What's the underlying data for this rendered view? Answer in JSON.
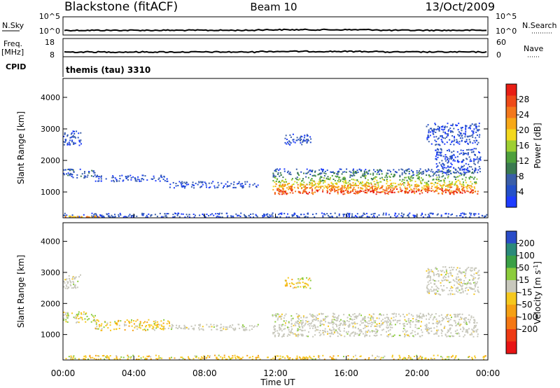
{
  "header": {
    "station": "Blackstone (fitACF)",
    "beam": "Beam 10",
    "date": "13/Oct/2009"
  },
  "param_panels": {
    "nsky": {
      "left_label": "N.Sky",
      "right_label": "N.Search",
      "left_ticks": [
        "10^5",
        "10^0"
      ],
      "right_ticks": [
        "10^5",
        "10^0"
      ]
    },
    "freq": {
      "left_label_1": "Freq.",
      "left_label_2": "[MHz]",
      "right_label": "Nave",
      "left_ticks": [
        "18",
        "8"
      ],
      "right_ticks": [
        "60",
        "0"
      ]
    },
    "cpid": {
      "label": "CPID",
      "text": "themis (tau) 3310"
    }
  },
  "chart_data": [
    {
      "type": "heatmap",
      "name": "power",
      "xlabel": "",
      "ylabel": "Slant Range [km]",
      "x_range_hours": [
        0,
        24
      ],
      "y_range_km": [
        180,
        4600
      ],
      "y_ticks": [
        1000,
        2000,
        3000,
        4000
      ],
      "colorbar": {
        "label": "Power [dB]",
        "range": [
          0,
          32
        ],
        "ticks": [
          "4",
          "8",
          "12",
          "16",
          "20",
          "24",
          "28"
        ],
        "colors": [
          "#1e3cff",
          "#2450c8",
          "#3a5ea8",
          "#3a7a50",
          "#4ea03c",
          "#9ecf32",
          "#f2d81e",
          "#f7a818",
          "#f3781c",
          "#ee4a18",
          "#e81e14"
        ]
      },
      "scatter_bands": [
        {
          "t_start": 0.0,
          "t_end": 1.0,
          "r_min": 2500,
          "r_max": 2950,
          "level": 1
        },
        {
          "t_start": 0.0,
          "t_end": 1.8,
          "r_min": 1450,
          "r_max": 1750,
          "level": 1.5
        },
        {
          "t_start": 1.8,
          "t_end": 6.0,
          "r_min": 1350,
          "r_max": 1550,
          "level": 1
        },
        {
          "t_start": 6.0,
          "t_end": 11.0,
          "r_min": 1150,
          "r_max": 1350,
          "level": 1
        },
        {
          "t_start": 0.0,
          "t_end": 24.0,
          "r_min": 200,
          "r_max": 350,
          "level": 1
        },
        {
          "t_start": 0.0,
          "t_end": 2.0,
          "r_min": 180,
          "r_max": 260,
          "level": 9
        },
        {
          "t_start": 11.8,
          "t_end": 23.4,
          "r_min": 950,
          "r_max": 1750,
          "level": 5
        },
        {
          "t_start": 12.0,
          "t_end": 23.2,
          "r_min": 1000,
          "r_max": 1300,
          "level": 9
        },
        {
          "t_start": 12.5,
          "t_end": 14.0,
          "r_min": 2500,
          "r_max": 2850,
          "level": 1
        },
        {
          "t_start": 20.5,
          "t_end": 23.5,
          "r_min": 2500,
          "r_max": 3200,
          "level": 1
        },
        {
          "t_start": 21.0,
          "t_end": 23.6,
          "r_min": 1600,
          "r_max": 2400,
          "level": 1
        }
      ]
    },
    {
      "type": "heatmap",
      "name": "velocity",
      "xlabel": "Time UT",
      "ylabel": "Slant Range [km]",
      "x_range_hours": [
        0,
        24
      ],
      "x_ticks": [
        "00:00",
        "04:00",
        "08:00",
        "12:00",
        "16:00",
        "20:00",
        "00:00"
      ],
      "y_range_km": [
        180,
        4600
      ],
      "y_ticks": [
        1000,
        2000,
        3000,
        4000
      ],
      "colorbar": {
        "label": "Velocity [m s^-1]",
        "ticks": [
          "200",
          "100",
          "50",
          "15",
          "-15",
          "-50",
          "-100",
          "-200"
        ],
        "colors": [
          "#2a4cc8",
          "#2a8a7a",
          "#3aa046",
          "#8ccc3c",
          "#c8c8bc",
          "#f5c81e",
          "#f5a014",
          "#f57814",
          "#ee3a14",
          "#e81414"
        ]
      },
      "scatter_bands": [
        {
          "t_start": 0.0,
          "t_end": 1.0,
          "r_min": 2500,
          "r_max": 2950,
          "level": "grey"
        },
        {
          "t_start": 0.0,
          "t_end": 1.8,
          "r_min": 1400,
          "r_max": 1750,
          "level": "green-yellow"
        },
        {
          "t_start": 1.8,
          "t_end": 6.0,
          "r_min": 1150,
          "r_max": 1500,
          "level": "yellow"
        },
        {
          "t_start": 6.0,
          "t_end": 11.0,
          "r_min": 1150,
          "r_max": 1350,
          "level": "grey"
        },
        {
          "t_start": 0.0,
          "t_end": 24.0,
          "r_min": 200,
          "r_max": 350,
          "level": "yellow"
        },
        {
          "t_start": 11.8,
          "t_end": 23.4,
          "r_min": 950,
          "r_max": 1700,
          "level": "grey"
        },
        {
          "t_start": 12.5,
          "t_end": 14.0,
          "r_min": 2500,
          "r_max": 2850,
          "level": "yellow"
        },
        {
          "t_start": 20.5,
          "t_end": 23.5,
          "r_min": 2300,
          "r_max": 3200,
          "level": "grey"
        }
      ]
    }
  ],
  "timeseries": {
    "nsky_level": 0.78,
    "freq_level": 0.78
  }
}
